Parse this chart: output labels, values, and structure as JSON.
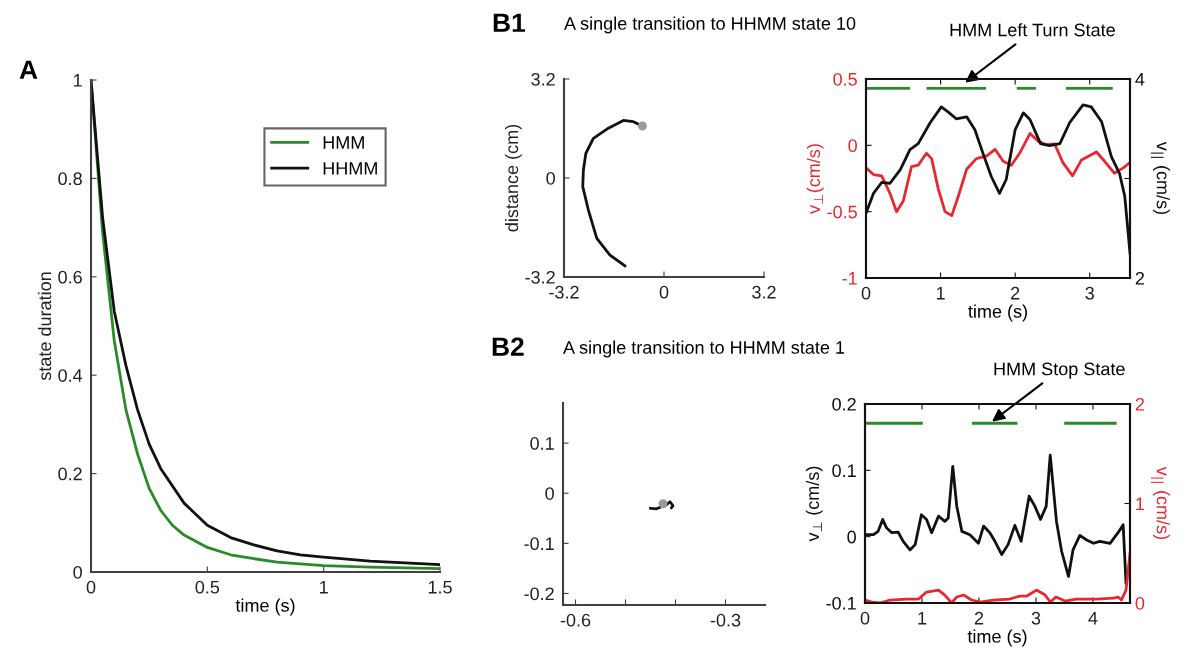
{
  "chart_data": [
    {
      "type": "line",
      "annotations": [
        "A"
      ],
      "xlabel": "time (s)",
      "ylabel": "state duration",
      "xlim": [
        0,
        1.5
      ],
      "xticks": [
        0,
        0.5,
        1,
        1.5
      ],
      "ylim": [
        0,
        1
      ],
      "yticks": [
        0,
        0.2,
        0.4,
        0.6,
        0.8,
        1
      ],
      "legend": "top right",
      "series": [
        {
          "name": "HMM",
          "color": "#2a8a2a",
          "x": [
            0,
            0.05,
            0.1,
            0.15,
            0.2,
            0.25,
            0.3,
            0.35,
            0.4,
            0.5,
            0.6,
            0.7,
            0.8,
            1.0,
            1.2,
            1.5
          ],
          "values": [
            1,
            0.69,
            0.47,
            0.33,
            0.24,
            0.17,
            0.125,
            0.095,
            0.075,
            0.05,
            0.035,
            0.027,
            0.02,
            0.013,
            0.01,
            0.007
          ]
        },
        {
          "name": "HHMM",
          "color": "#111111",
          "x": [
            0,
            0.05,
            0.1,
            0.15,
            0.2,
            0.25,
            0.3,
            0.4,
            0.5,
            0.6,
            0.7,
            0.8,
            0.9,
            1.0,
            1.2,
            1.5
          ],
          "values": [
            1,
            0.72,
            0.53,
            0.42,
            0.33,
            0.26,
            0.21,
            0.14,
            0.095,
            0.07,
            0.055,
            0.043,
            0.035,
            0.03,
            0.022,
            0.015
          ]
        }
      ]
    },
    {
      "type": "line",
      "annotations": [
        "B1"
      ],
      "title": "A single transition to HHMM state 10",
      "ylabel": "distance (cm)",
      "xlim": [
        -3.2,
        3.2
      ],
      "xticks": [
        -3.2,
        0,
        3.2
      ],
      "ylim": [
        -3.2,
        3.2
      ],
      "yticks": [
        -3.2,
        0,
        3.2
      ],
      "series": [
        {
          "color": "#111111",
          "x": [
            -1.25,
            -1.73,
            -2.15,
            -2.42,
            -2.6,
            -2.58,
            -2.5,
            -2.26,
            -1.78,
            -1.3,
            -0.98,
            -0.69
          ],
          "values": [
            -2.84,
            -2.49,
            -1.95,
            -1.04,
            -0.28,
            0.26,
            0.8,
            1.28,
            1.61,
            1.86,
            1.82,
            1.68
          ]
        },
        {
          "type": "scatter",
          "marker": "circle",
          "color": "#999999",
          "x": [
            -0.69
          ],
          "values": [
            1.68
          ]
        }
      ]
    },
    {
      "type": "line",
      "xlabel": "time (s)",
      "ylabel": "v$_{⊥}$(cm/s)",
      "y2label": "v$_{||}$ (cm/s)",
      "xlim": [
        0,
        3.54
      ],
      "xticks": [
        0,
        1,
        2,
        3
      ],
      "ylim": [
        -1,
        0.5
      ],
      "yticks": [
        -1,
        -0.5,
        0,
        0.5
      ],
      "y2lim": [
        2,
        4
      ],
      "y2ticks": [
        2,
        {
          "value": 3,
          "label": null
        },
        4
      ],
      "annotations": [
        {
          "text": "HMM Left Turn State",
          "x": 1.3,
          "y": 0.46
        }
      ],
      "series": [
        {
          "color": "#e8282e",
          "x": [
            0,
            0.1,
            0.21,
            0.32,
            0.41,
            0.5,
            0.61,
            0.7,
            0.81,
            0.88,
            0.97,
            1.06,
            1.15,
            1.24,
            1.35,
            1.48,
            1.62,
            1.73,
            1.84,
            1.95,
            2.06,
            2.2,
            2.31,
            2.42,
            2.53,
            2.64,
            2.77,
            2.89,
            3.09,
            3.2,
            3.33,
            3.45,
            3.54
          ],
          "values": [
            -0.17,
            -0.22,
            -0.23,
            -0.36,
            -0.5,
            -0.42,
            -0.16,
            -0.15,
            -0.06,
            -0.1,
            -0.33,
            -0.5,
            -0.53,
            -0.38,
            -0.18,
            -0.1,
            -0.08,
            -0.03,
            -0.12,
            -0.15,
            -0.06,
            0.09,
            0.03,
            0.005,
            0.01,
            -0.13,
            -0.23,
            -0.11,
            -0.05,
            -0.12,
            -0.21,
            -0.17,
            -0.13
          ]
        },
        {
          "color": "#2a8a2a",
          "x": [
            0.03,
            0.57,
            0.7,
            0.83,
            1.59,
            1.8,
            2.04,
            2.26,
            2.5,
            2.7,
            3.29
          ],
          "values": [
            0.43,
            0.43,
            null,
            0.43,
            0.43,
            null,
            0.43,
            0.43,
            null,
            0.43,
            0.43
          ]
        },
        {
          "axis": "y2",
          "color": "#111111",
          "x": [
            0,
            0.1,
            0.21,
            0.32,
            0.46,
            0.59,
            0.7,
            0.86,
            1.01,
            1.1,
            1.21,
            1.35,
            1.46,
            1.57,
            1.68,
            1.79,
            1.88,
            2.0,
            2.11,
            2.2,
            2.34,
            2.46,
            2.6,
            2.73,
            2.91,
            3.02,
            3.16,
            3.29,
            3.4,
            3.47,
            3.54
          ],
          "values": [
            2.65,
            2.85,
            2.96,
            2.95,
            3.09,
            3.29,
            3.35,
            3.56,
            3.72,
            3.67,
            3.6,
            3.62,
            3.49,
            3.25,
            3.02,
            2.85,
            2.99,
            3.49,
            3.66,
            3.59,
            3.35,
            3.33,
            3.35,
            3.56,
            3.74,
            3.72,
            3.57,
            3.22,
            3.05,
            2.82,
            2.25
          ]
        }
      ]
    },
    {
      "type": "line",
      "annotations": [
        "B2"
      ],
      "title": "A single transition to HHMM state 1",
      "xlim": [
        -0.625,
        -0.221
      ],
      "xticks": [
        -0.6,
        {
          "value": -0.5,
          "label": null
        },
        {
          "value": -0.4,
          "label": null
        },
        -0.3
      ],
      "ylim": [
        -0.223,
        0.18
      ],
      "yticks": [
        -0.2,
        -0.1,
        0,
        0.1
      ],
      "series": [
        {
          "color": "#111111",
          "x": [
            -0.45,
            -0.438,
            -0.428,
            -0.418,
            -0.411,
            -0.405,
            -0.408
          ],
          "values": [
            -0.03,
            -0.031,
            -0.027,
            -0.023,
            -0.017,
            -0.025,
            -0.029
          ]
        },
        {
          "type": "scatter",
          "marker": "circle",
          "color": "#999999",
          "x": [
            -0.425
          ],
          "values": [
            -0.021
          ]
        }
      ]
    },
    {
      "type": "line",
      "xlabel": "time (s)",
      "ylabel": "v$_{⊥}$ (cm/s)",
      "y2label": "v$_{||}$ (cm/s)",
      "xlim": [
        0,
        4.65
      ],
      "xticks": [
        0,
        1,
        2,
        3,
        4
      ],
      "ylim": [
        -0.1,
        0.2
      ],
      "yticks": [
        -0.1,
        0,
        0.1,
        0.2
      ],
      "y2lim": [
        0,
        2
      ],
      "y2ticks": [
        0,
        1,
        2
      ],
      "annotations": [
        {
          "text": "HMM Stop State",
          "x": 2.19,
          "y": 0.171
        }
      ],
      "series": [
        {
          "color": "#111111",
          "x": [
            0,
            0.15,
            0.23,
            0.31,
            0.38,
            0.47,
            0.58,
            0.67,
            0.79,
            0.88,
            0.99,
            1.08,
            1.17,
            1.29,
            1.4,
            1.46,
            1.54,
            1.61,
            1.7,
            1.84,
            1.99,
            2.08,
            2.19,
            2.28,
            2.4,
            2.51,
            2.63,
            2.74,
            2.88,
            2.98,
            3.08,
            3.18,
            3.25,
            3.36,
            3.45,
            3.57,
            3.65,
            3.77,
            3.89,
            4.01,
            4.12,
            4.3,
            4.44,
            4.53,
            4.58
          ],
          "values": [
            0.003,
            0.003,
            0.008,
            0.026,
            0.013,
            0.006,
            0.007,
            -0.007,
            -0.02,
            -0.012,
            0.033,
            0.026,
            0.006,
            0.031,
            0.023,
            0.028,
            0.106,
            0.046,
            0.008,
            0.003,
            -0.01,
            0.016,
            0.006,
            -0.007,
            -0.027,
            -0.012,
            0.017,
            -0.007,
            0.061,
            0.046,
            0.026,
            0.046,
            0.123,
            0.023,
            -0.022,
            -0.06,
            -0.02,
            0.002,
            -0.005,
            -0.01,
            -0.007,
            -0.01,
            0.006,
            0.018,
            -0.07
          ]
        },
        {
          "color": "#2a8a2a",
          "x": [
            0.03,
            0.99,
            1.4,
            1.9,
            2.65,
            3.1,
            3.52,
            4.39
          ],
          "values": [
            0.171,
            0.171,
            null,
            0.171,
            0.171,
            null,
            0.171,
            0.171
          ]
        },
        {
          "axis": "y2",
          "color": "#e8282e",
          "x": [
            0,
            0.12,
            0.26,
            0.44,
            0.73,
            0.94,
            1.08,
            1.29,
            1.4,
            1.52,
            1.61,
            1.73,
            1.87,
            2.02,
            2.25,
            2.54,
            2.72,
            2.84,
            3.01,
            3.16,
            3.25,
            3.35,
            3.51,
            3.71,
            4.06,
            4.36,
            4.44,
            4.5,
            4.58,
            4.65
          ],
          "values": [
            0.03,
            0.01,
            0,
            0.03,
            0.04,
            0.04,
            0.11,
            0.13,
            0.08,
            0,
            0.06,
            0.08,
            0.03,
            0.01,
            0.03,
            0.04,
            0.07,
            0.07,
            0.13,
            0.08,
            0.01,
            0.06,
            0.02,
            0.04,
            0.04,
            0.05,
            0.06,
            0.03,
            0.13,
            0.5
          ]
        }
      ]
    }
  ]
}
